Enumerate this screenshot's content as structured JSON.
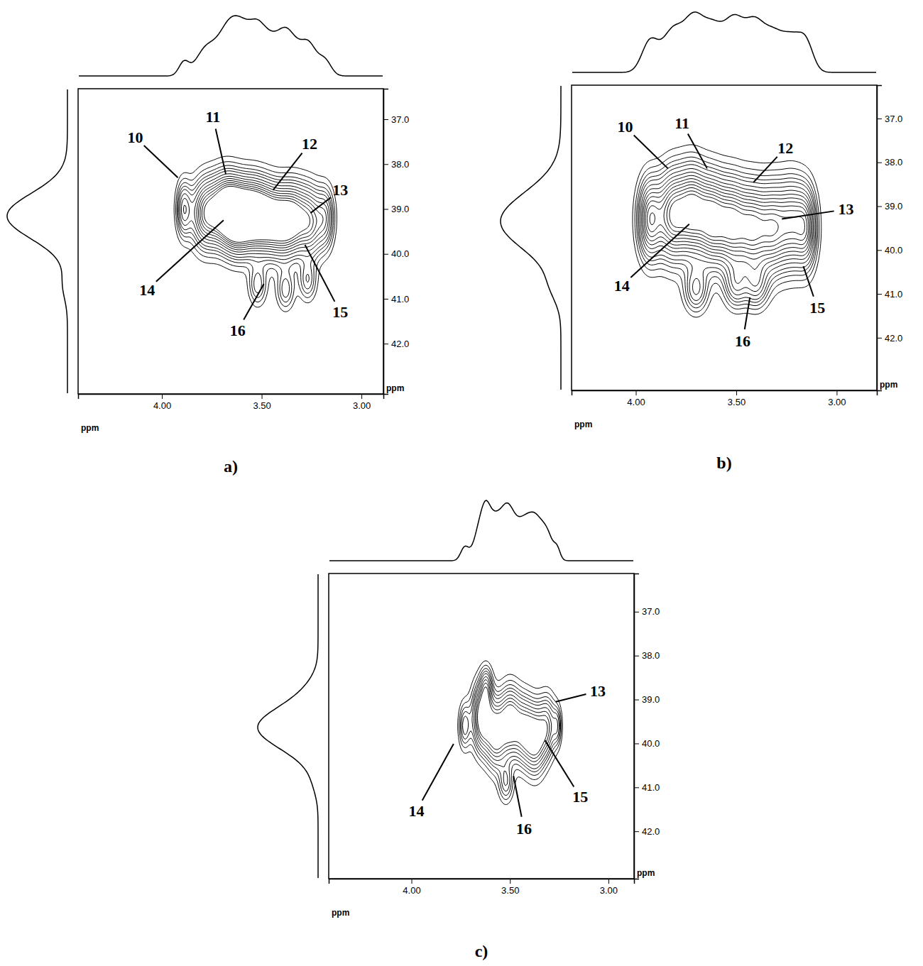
{
  "chart_data": [
    {
      "type": "contour",
      "title": "a)",
      "x_label": "ppm",
      "y_label": "ppm",
      "xlim": [
        4.42,
        2.89
      ],
      "ylim": [
        36.32,
        43.12
      ],
      "xticks": [
        {
          "value": 4,
          "label": "4.00"
        },
        {
          "value": 3.5,
          "label": "3.50"
        },
        {
          "value": 3,
          "label": "3.00"
        }
      ],
      "yticks": [
        {
          "value": 37,
          "label": "37.0"
        },
        {
          "value": 38,
          "label": "38.0"
        },
        {
          "value": 39,
          "label": "39.0"
        },
        {
          "value": 40,
          "label": "40.0"
        },
        {
          "value": 41,
          "label": "41.0"
        },
        {
          "value": 42,
          "label": "42.0"
        }
      ],
      "color": "#000000",
      "contour_levels": [
        0.08,
        0.14,
        0.2,
        0.26,
        0.32,
        0.4,
        0.48,
        0.56,
        0.64,
        0.72,
        0.8,
        0.88
      ],
      "peaks": {
        "x": [
          3.89,
          3.78,
          3.68,
          3.62,
          3.55,
          3.48,
          3.4,
          3.33,
          3.25,
          3.18,
          3.52,
          3.38,
          3.27
        ],
        "y": [
          39.0,
          39.1,
          39.0,
          39.2,
          39.1,
          39.2,
          39.3,
          39.2,
          39.3,
          39.2,
          40.7,
          40.8,
          40.6
        ],
        "height": [
          0.5,
          0.8,
          1.0,
          1.0,
          0.9,
          0.85,
          0.8,
          0.75,
          0.6,
          0.45,
          0.3,
          0.3,
          0.3
        ],
        "x_width": [
          0.025,
          0.05,
          0.05,
          0.05,
          0.05,
          0.05,
          0.05,
          0.05,
          0.04,
          0.03,
          0.03,
          0.03,
          0.03
        ],
        "y_width": [
          0.4,
          0.5,
          0.5,
          0.5,
          0.5,
          0.5,
          0.5,
          0.5,
          0.5,
          0.45,
          0.3,
          0.3,
          0.3
        ]
      },
      "annotations": [
        {
          "text": "10",
          "x": 3.92,
          "y": 38.3,
          "text_x": 4.134,
          "text_y": 37.4
        },
        {
          "text": "11",
          "x": 3.68,
          "y": 38.22,
          "text_x": 3.744,
          "text_y": 36.95
        },
        {
          "text": "12",
          "x": 3.443,
          "y": 38.58,
          "text_x": 3.26,
          "text_y": 37.54
        },
        {
          "text": "13",
          "x": 3.255,
          "y": 39.09,
          "text_x": 3.106,
          "text_y": 38.58
        },
        {
          "text": "14",
          "x": 3.691,
          "y": 39.25,
          "text_x": 4.074,
          "text_y": 40.8
        },
        {
          "text": "15",
          "x": 3.283,
          "y": 39.8,
          "text_x": 3.106,
          "text_y": 41.3
        },
        {
          "text": "16",
          "x": 3.489,
          "y": 40.67,
          "text_x": 3.62,
          "text_y": 41.7
        }
      ]
    },
    {
      "type": "contour",
      "title": "b)",
      "x_label": "ppm",
      "y_label": "ppm",
      "xlim": [
        4.32,
        2.8
      ],
      "ylim": [
        36.24,
        43.2
      ],
      "xticks": [
        {
          "value": 4,
          "label": "4.00"
        },
        {
          "value": 3.5,
          "label": "3.50"
        },
        {
          "value": 3,
          "label": "3.00"
        }
      ],
      "yticks": [
        {
          "value": 37,
          "label": "37.0"
        },
        {
          "value": 38,
          "label": "38.0"
        },
        {
          "value": 39,
          "label": "39.0"
        },
        {
          "value": 40,
          "label": "40.0"
        },
        {
          "value": 41,
          "label": "41.0"
        },
        {
          "value": 42,
          "label": "42.0"
        }
      ],
      "color": "#000000",
      "contour_levels": [
        0.08,
        0.14,
        0.2,
        0.26,
        0.32,
        0.4,
        0.48,
        0.56,
        0.64,
        0.72,
        0.8,
        0.88,
        0.96,
        1.04
      ],
      "peaks": {
        "x": [
          3.93,
          3.82,
          3.72,
          3.62,
          3.52,
          3.42,
          3.32,
          3.22,
          3.15,
          3.7,
          3.5,
          3.4
        ],
        "y": [
          39.3,
          39.2,
          39.1,
          39.3,
          39.4,
          39.5,
          39.5,
          39.4,
          39.5,
          40.9,
          40.8,
          40.8
        ],
        "height": [
          0.8,
          0.95,
          1.0,
          1.0,
          0.95,
          0.9,
          0.85,
          0.8,
          0.6,
          0.4,
          0.4,
          0.4
        ],
        "x_width": [
          0.04,
          0.05,
          0.05,
          0.05,
          0.05,
          0.05,
          0.05,
          0.05,
          0.035,
          0.04,
          0.04,
          0.04
        ],
        "y_width": [
          0.6,
          0.65,
          0.65,
          0.65,
          0.65,
          0.65,
          0.65,
          0.65,
          0.6,
          0.35,
          0.35,
          0.35
        ]
      },
      "annotations": [
        {
          "text": "10",
          "x": 3.84,
          "y": 38.14,
          "text_x": 4.053,
          "text_y": 37.19
        },
        {
          "text": "11",
          "x": 3.645,
          "y": 38.14,
          "text_x": 3.77,
          "text_y": 37.11
        },
        {
          "text": "12",
          "x": 3.415,
          "y": 38.46,
          "text_x": 3.255,
          "text_y": 37.67
        },
        {
          "text": "13",
          "x": 3.273,
          "y": 39.29,
          "text_x": 2.954,
          "text_y": 39.07
        },
        {
          "text": "14",
          "x": 3.734,
          "y": 39.41,
          "text_x": 4.07,
          "text_y": 40.81
        },
        {
          "text": "15",
          "x": 3.166,
          "y": 40.37,
          "text_x": 3.096,
          "text_y": 41.32
        },
        {
          "text": "16",
          "x": 3.432,
          "y": 41.08,
          "text_x": 3.468,
          "text_y": 42.08
        }
      ]
    },
    {
      "type": "contour",
      "title": "c)",
      "x_label": "ppm",
      "y_label": "ppm",
      "xlim": [
        4.42,
        2.87
      ],
      "ylim": [
        36.13,
        43.08
      ],
      "xticks": [
        {
          "value": 4,
          "label": "4.00"
        },
        {
          "value": 3.5,
          "label": "3.50"
        },
        {
          "value": 3,
          "label": "3.00"
        }
      ],
      "yticks": [
        {
          "value": 37,
          "label": "37.0"
        },
        {
          "value": 38,
          "label": "38.0"
        },
        {
          "value": 39,
          "label": "39.0"
        },
        {
          "value": 40,
          "label": "40.0"
        },
        {
          "value": 41,
          "label": "41.0"
        },
        {
          "value": 42,
          "label": "42.0"
        }
      ],
      "color": "#000000",
      "contour_levels": [
        0.08,
        0.14,
        0.2,
        0.26,
        0.32,
        0.4,
        0.48,
        0.56,
        0.64
      ],
      "peaks": {
        "x": [
          3.73,
          3.64,
          3.57,
          3.5,
          3.43,
          3.37,
          3.31,
          3.26,
          3.62,
          3.52
        ],
        "y": [
          39.6,
          39.4,
          39.8,
          39.5,
          39.7,
          39.9,
          39.6,
          39.6,
          38.7,
          40.9
        ],
        "height": [
          0.35,
          0.8,
          0.7,
          0.75,
          0.6,
          0.7,
          0.5,
          0.3,
          0.35,
          0.3
        ],
        "x_width": [
          0.02,
          0.035,
          0.035,
          0.035,
          0.035,
          0.035,
          0.03,
          0.015,
          0.02,
          0.025
        ],
        "y_width": [
          0.35,
          0.5,
          0.5,
          0.5,
          0.5,
          0.5,
          0.45,
          0.3,
          0.3,
          0.3
        ]
      },
      "annotations": [
        {
          "text": "13",
          "x": 3.268,
          "y": 39.05,
          "text_x": 3.054,
          "text_y": 38.81
        },
        {
          "text": "14",
          "x": 3.786,
          "y": 40.01,
          "text_x": 3.975,
          "text_y": 41.54
        },
        {
          "text": "15",
          "x": 3.322,
          "y": 39.93,
          "text_x": 3.143,
          "text_y": 41.22
        },
        {
          "text": "16",
          "x": 3.482,
          "y": 40.74,
          "text_x": 3.429,
          "text_y": 41.94
        }
      ]
    }
  ]
}
